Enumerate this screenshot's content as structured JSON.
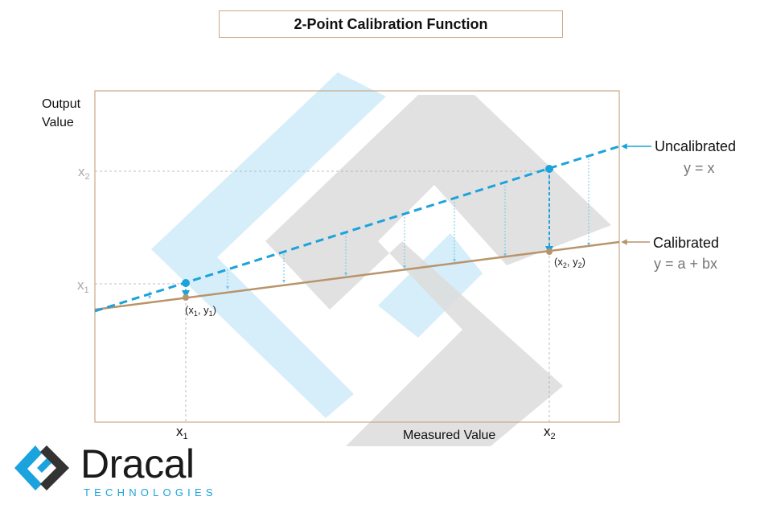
{
  "title": "2-Point Calibration  Function",
  "axes": {
    "y_label_line1": "Output",
    "y_label_line2": "Value",
    "x_label": "Measured Value",
    "x1_tick": "x",
    "x1_sub": "1",
    "x2_tick": "x",
    "x2_sub": "2",
    "y_x1_tick": "x",
    "y_x1_sub": "1",
    "y_x2_tick": "x",
    "y_x2_sub": "2"
  },
  "points": {
    "p1_label": "(x",
    "p1_sub1": "1",
    "p1_mid": ", y",
    "p1_sub2": "1",
    "p1_end": ")",
    "p2_label": "(x",
    "p2_sub1": "2",
    "p2_mid": ", y",
    "p2_sub2": "2",
    "p2_end": ")"
  },
  "legend": {
    "uncalibrated": "Uncalibrated",
    "uncalibrated_eq": "y = x",
    "calibrated": "Calibrated",
    "calibrated_eq": "y = a + bx"
  },
  "logo": {
    "word": "Dracal",
    "sub": "TECHNOLOGIES"
  },
  "colors": {
    "uncalibrated": "#1aa3dc",
    "calibrated": "#b8946a",
    "frame": "#c9a98a",
    "watermark_blue": "#d6eef9",
    "watermark_gray": "#dcdcdc",
    "tick_gray": "#aaaaaa"
  }
}
